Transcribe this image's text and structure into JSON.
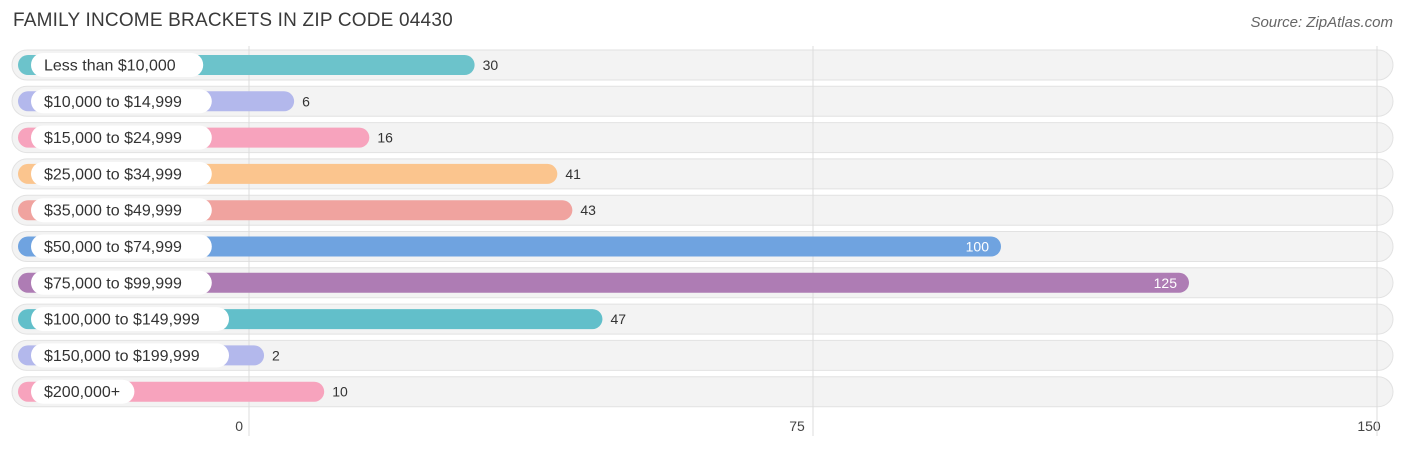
{
  "header": {
    "title": "FAMILY INCOME BRACKETS IN ZIP CODE 04430",
    "source": "Source: ZipAtlas.com"
  },
  "chart_data": {
    "type": "bar",
    "orientation": "horizontal",
    "categories": [
      "Less than $10,000",
      "$10,000 to $14,999",
      "$15,000 to $24,999",
      "$25,000 to $34,999",
      "$35,000 to $49,999",
      "$50,000 to $74,999",
      "$75,000 to $99,999",
      "$100,000 to $149,999",
      "$150,000 to $199,999",
      "$200,000+"
    ],
    "values": [
      30,
      6,
      16,
      41,
      43,
      100,
      125,
      47,
      2,
      10
    ],
    "colors": [
      "#6cc3cb",
      "#b3b8ec",
      "#f7a3bd",
      "#fbc58e",
      "#f0a39f",
      "#6fa3e0",
      "#ae7cb4",
      "#62bfca",
      "#b3b8ec",
      "#f7a3bd"
    ],
    "xlim": [
      0,
      150
    ],
    "xticks": [
      0,
      75,
      150
    ],
    "grid": true
  }
}
